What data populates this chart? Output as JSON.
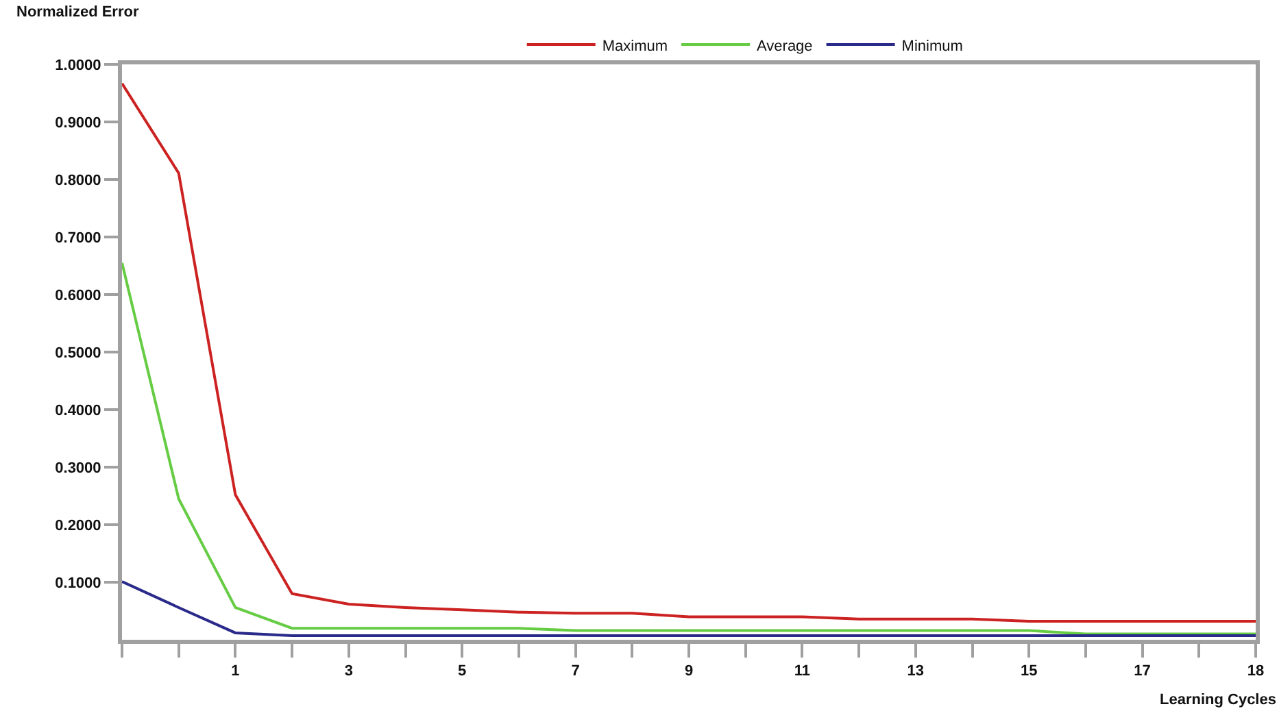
{
  "chart_data": {
    "type": "line",
    "ylabel": "Normalized Error",
    "xlabel": "Learning Cycles",
    "categories": [
      null,
      null,
      "1",
      null,
      "3",
      null,
      "5",
      null,
      "7",
      null,
      "9",
      null,
      "11",
      null,
      "13",
      null,
      "15",
      null,
      "17",
      null,
      "18"
    ],
    "series": [
      {
        "name": "Maximum",
        "color": "#cc2222",
        "values": [
          0.967,
          0.811,
          0.252,
          0.08,
          0.062,
          0.056,
          0.052,
          0.048,
          0.046,
          0.046,
          0.04,
          0.04,
          0.04,
          0.036,
          0.036,
          0.036,
          0.032,
          0.032,
          0.032,
          0.032,
          0.032
        ]
      },
      {
        "name": "Average",
        "color": "#66cc44",
        "values": [
          0.655,
          0.245,
          0.056,
          0.02,
          0.02,
          0.02,
          0.02,
          0.02,
          0.016,
          0.016,
          0.016,
          0.016,
          0.016,
          0.016,
          0.016,
          0.016,
          0.016,
          0.01,
          0.01,
          0.01,
          0.01
        ]
      },
      {
        "name": "Minimum",
        "color": "#2a2a8a",
        "values": [
          0.101,
          0.056,
          0.012,
          0.007,
          0.007,
          0.007,
          0.007,
          0.007,
          0.007,
          0.007,
          0.007,
          0.007,
          0.007,
          0.007,
          0.007,
          0.007,
          0.007,
          0.007,
          0.007,
          0.007,
          0.007
        ]
      }
    ],
    "ylim": [
      0,
      1
    ],
    "yticks": [
      {
        "value": 0.1,
        "label": "0.1000"
      },
      {
        "value": 0.2,
        "label": "0.2000"
      },
      {
        "value": 0.3,
        "label": "0.3000"
      },
      {
        "value": 0.4,
        "label": "0.4000"
      },
      {
        "value": 0.5,
        "label": "0.5000"
      },
      {
        "value": 0.6,
        "label": "0.6000"
      },
      {
        "value": 0.7,
        "label": "0.7000"
      },
      {
        "value": 0.8,
        "label": "0.8000"
      },
      {
        "value": 0.9,
        "label": "0.9000"
      },
      {
        "value": 1.0,
        "label": "1.0000"
      }
    ],
    "legend": "top",
    "marker": "none",
    "line_style": "solid"
  }
}
